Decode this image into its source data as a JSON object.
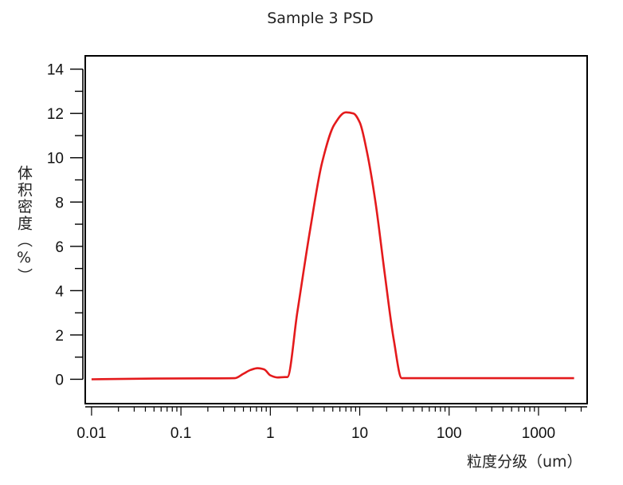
{
  "chart_data": {
    "type": "line",
    "title": "Sample 3 PSD",
    "xlabel": "粒度分级（um）",
    "ylabel": "体积密度（%）",
    "x_scale": "log",
    "xlim": [
      0.0085,
      3500
    ],
    "ylim": [
      -1.1,
      14.6
    ],
    "x_ticks": [
      {
        "value": 0.01,
        "label": "0.01"
      },
      {
        "value": 0.1,
        "label": "0.1"
      },
      {
        "value": 1,
        "label": "1"
      },
      {
        "value": 10,
        "label": "10"
      },
      {
        "value": 100,
        "label": "100"
      },
      {
        "value": 1000,
        "label": "1000"
      }
    ],
    "y_ticks": [
      {
        "value": 0,
        "label": "0"
      },
      {
        "value": 2,
        "label": "2"
      },
      {
        "value": 4,
        "label": "4"
      },
      {
        "value": 6,
        "label": "6"
      },
      {
        "value": 8,
        "label": "8"
      },
      {
        "value": 10,
        "label": "10"
      },
      {
        "value": 12,
        "label": "12"
      },
      {
        "value": 14,
        "label": "14"
      }
    ],
    "grid": false,
    "series_color": "#e41a1c",
    "series": [
      {
        "x": [
          0.01,
          0.05,
          0.2,
          0.4,
          0.5,
          0.6,
          0.72,
          0.85,
          1.0,
          1.2,
          1.45,
          1.55,
          2.0,
          2.8,
          3.8,
          5.2,
          7.0,
          8.5,
          10.0,
          12.0,
          15.0,
          19.0,
          24.0,
          29.5,
          35,
          100,
          1000,
          2500
        ],
        "y": [
          0.0,
          0.03,
          0.04,
          0.05,
          0.25,
          0.42,
          0.5,
          0.45,
          0.18,
          0.08,
          0.1,
          0.1,
          3.0,
          6.8,
          9.8,
          11.5,
          12.05,
          12.0,
          11.6,
          10.3,
          8.0,
          4.8,
          1.8,
          0.05,
          0.05,
          0.05,
          0.05,
          0.05
        ]
      }
    ]
  }
}
